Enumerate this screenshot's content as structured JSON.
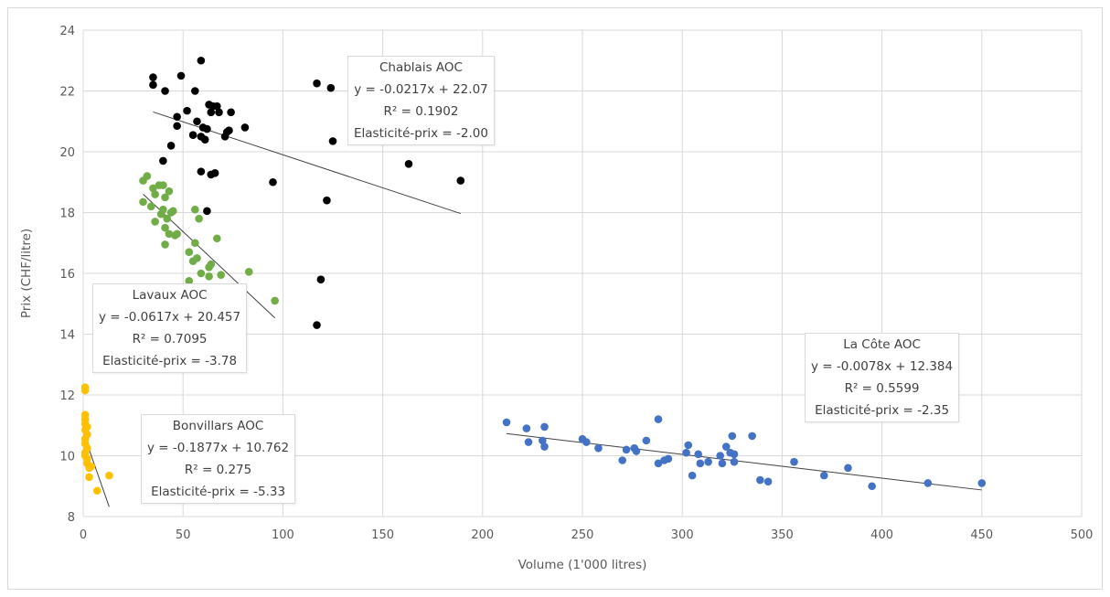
{
  "chart_data": {
    "type": "scatter",
    "xlabel": "Volume (1'000 litres)",
    "ylabel": "Prix (CHF/litre)",
    "xlim": [
      0,
      500
    ],
    "ylim": [
      8,
      24
    ],
    "xticks": [
      0,
      50,
      100,
      150,
      200,
      250,
      300,
      350,
      400,
      450,
      500
    ],
    "yticks": [
      8,
      10,
      12,
      14,
      16,
      18,
      20,
      22,
      24
    ],
    "grid": true,
    "legend": "none",
    "series": [
      {
        "name": "Chablais AOC",
        "color": "#000000",
        "annotation": [
          "Chablais AOC",
          "y = -0.0217x + 22.07",
          "R² = 0.1902",
          "Elasticité-prix = -2.00"
        ],
        "trend": {
          "slope": -0.0217,
          "intercept": 22.07,
          "x_range": [
            35,
            189
          ]
        },
        "points": [
          [
            35,
            22.45
          ],
          [
            35,
            22.2
          ],
          [
            41,
            22.0
          ],
          [
            49,
            22.5
          ],
          [
            59,
            23.0
          ],
          [
            47,
            21.15
          ],
          [
            47,
            20.85
          ],
          [
            52,
            21.35
          ],
          [
            56,
            22.0
          ],
          [
            44,
            20.2
          ],
          [
            40,
            19.7
          ],
          [
            55,
            20.55
          ],
          [
            57,
            21.0
          ],
          [
            59,
            20.5
          ],
          [
            60,
            20.8
          ],
          [
            61,
            20.4
          ],
          [
            62,
            20.75
          ],
          [
            63,
            21.55
          ],
          [
            64,
            21.3
          ],
          [
            65,
            21.5
          ],
          [
            67,
            21.5
          ],
          [
            68,
            21.3
          ],
          [
            71,
            20.5
          ],
          [
            72,
            20.65
          ],
          [
            73,
            20.7
          ],
          [
            74,
            21.3
          ],
          [
            59,
            19.35
          ],
          [
            64,
            19.25
          ],
          [
            66,
            19.3
          ],
          [
            81,
            20.8
          ],
          [
            62,
            18.05
          ],
          [
            95,
            19.0
          ],
          [
            117,
            22.25
          ],
          [
            124,
            22.1
          ],
          [
            125,
            20.35
          ],
          [
            163,
            19.6
          ],
          [
            189,
            19.05
          ],
          [
            122,
            18.4
          ],
          [
            119,
            15.8
          ],
          [
            117,
            14.3
          ]
        ]
      },
      {
        "name": "Lavaux AOC",
        "color": "#70ad47",
        "annotation": [
          "Lavaux AOC",
          "y = -0.0617x + 20.457",
          "R² = 0.7095",
          "Elasticité-prix = -3.78"
        ],
        "trend": {
          "slope": -0.0617,
          "intercept": 20.457,
          "x_range": [
            30,
            96
          ]
        },
        "points": [
          [
            30,
            19.05
          ],
          [
            32,
            19.2
          ],
          [
            35,
            18.8
          ],
          [
            36,
            18.6
          ],
          [
            38,
            18.9
          ],
          [
            40,
            18.9
          ],
          [
            41,
            18.5
          ],
          [
            43,
            18.7
          ],
          [
            30,
            18.35
          ],
          [
            34,
            18.2
          ],
          [
            36,
            17.7
          ],
          [
            39,
            17.95
          ],
          [
            40,
            18.1
          ],
          [
            41,
            17.5
          ],
          [
            42,
            17.8
          ],
          [
            44,
            18.0
          ],
          [
            45,
            18.05
          ],
          [
            43,
            17.3
          ],
          [
            46,
            17.25
          ],
          [
            47,
            17.3
          ],
          [
            41,
            16.95
          ],
          [
            56,
            18.1
          ],
          [
            58,
            17.8
          ],
          [
            56,
            17.0
          ],
          [
            55,
            16.4
          ],
          [
            53,
            16.7
          ],
          [
            57,
            16.5
          ],
          [
            59,
            16.0
          ],
          [
            63,
            16.2
          ],
          [
            63,
            15.9
          ],
          [
            64,
            16.3
          ],
          [
            67,
            17.15
          ],
          [
            69,
            15.95
          ],
          [
            53,
            15.75
          ],
          [
            83,
            16.05
          ],
          [
            96,
            15.1
          ]
        ]
      },
      {
        "name": "La Côte AOC",
        "color": "#4472c4",
        "annotation": [
          "La Côte AOC",
          "y = -0.0078x + 12.384",
          "R² = 0.5599",
          "Elasticité-prix = -2.35"
        ],
        "trend": {
          "slope": -0.0078,
          "intercept": 12.384,
          "x_range": [
            212,
            450
          ]
        },
        "points": [
          [
            212,
            11.1
          ],
          [
            222,
            10.9
          ],
          [
            223,
            10.45
          ],
          [
            230,
            10.5
          ],
          [
            231,
            10.95
          ],
          [
            231,
            10.3
          ],
          [
            250,
            10.55
          ],
          [
            252,
            10.45
          ],
          [
            258,
            10.25
          ],
          [
            270,
            9.85
          ],
          [
            272,
            10.2
          ],
          [
            276,
            10.25
          ],
          [
            277,
            10.15
          ],
          [
            282,
            10.5
          ],
          [
            288,
            11.2
          ],
          [
            288,
            9.75
          ],
          [
            291,
            9.85
          ],
          [
            293,
            9.9
          ],
          [
            302,
            10.1
          ],
          [
            303,
            10.35
          ],
          [
            305,
            9.35
          ],
          [
            308,
            10.05
          ],
          [
            309,
            9.75
          ],
          [
            313,
            9.8
          ],
          [
            319,
            10.0
          ],
          [
            320,
            9.75
          ],
          [
            322,
            10.3
          ],
          [
            324,
            10.1
          ],
          [
            325,
            10.65
          ],
          [
            326,
            10.05
          ],
          [
            326,
            9.8
          ],
          [
            335,
            10.65
          ],
          [
            339,
            9.2
          ],
          [
            343,
            9.15
          ],
          [
            356,
            9.8
          ],
          [
            371,
            9.35
          ],
          [
            383,
            9.6
          ],
          [
            395,
            9.0
          ],
          [
            423,
            9.1
          ],
          [
            450,
            9.1
          ]
        ]
      },
      {
        "name": "Bonvillars AOC",
        "color": "#ffc000",
        "annotation": [
          "Bonvillars AOC",
          "y = -0.1877x + 10.762",
          "R² = 0.275",
          "Elasticité-prix = -5.33"
        ],
        "trend": {
          "slope": -0.1877,
          "intercept": 10.762,
          "x_range": [
            1,
            13
          ]
        },
        "points": [
          [
            1,
            12.25
          ],
          [
            1,
            12.15
          ],
          [
            1,
            11.35
          ],
          [
            1,
            11.2
          ],
          [
            1,
            11.05
          ],
          [
            2,
            10.95
          ],
          [
            1,
            10.85
          ],
          [
            2,
            10.7
          ],
          [
            1,
            10.55
          ],
          [
            1,
            10.4
          ],
          [
            2,
            10.25
          ],
          [
            1,
            10.1
          ],
          [
            1,
            10.0
          ],
          [
            2,
            9.9
          ],
          [
            2,
            9.75
          ],
          [
            3,
            9.6
          ],
          [
            4,
            9.65
          ],
          [
            3,
            9.3
          ],
          [
            7,
            8.85
          ],
          [
            13,
            9.35
          ]
        ]
      }
    ]
  }
}
